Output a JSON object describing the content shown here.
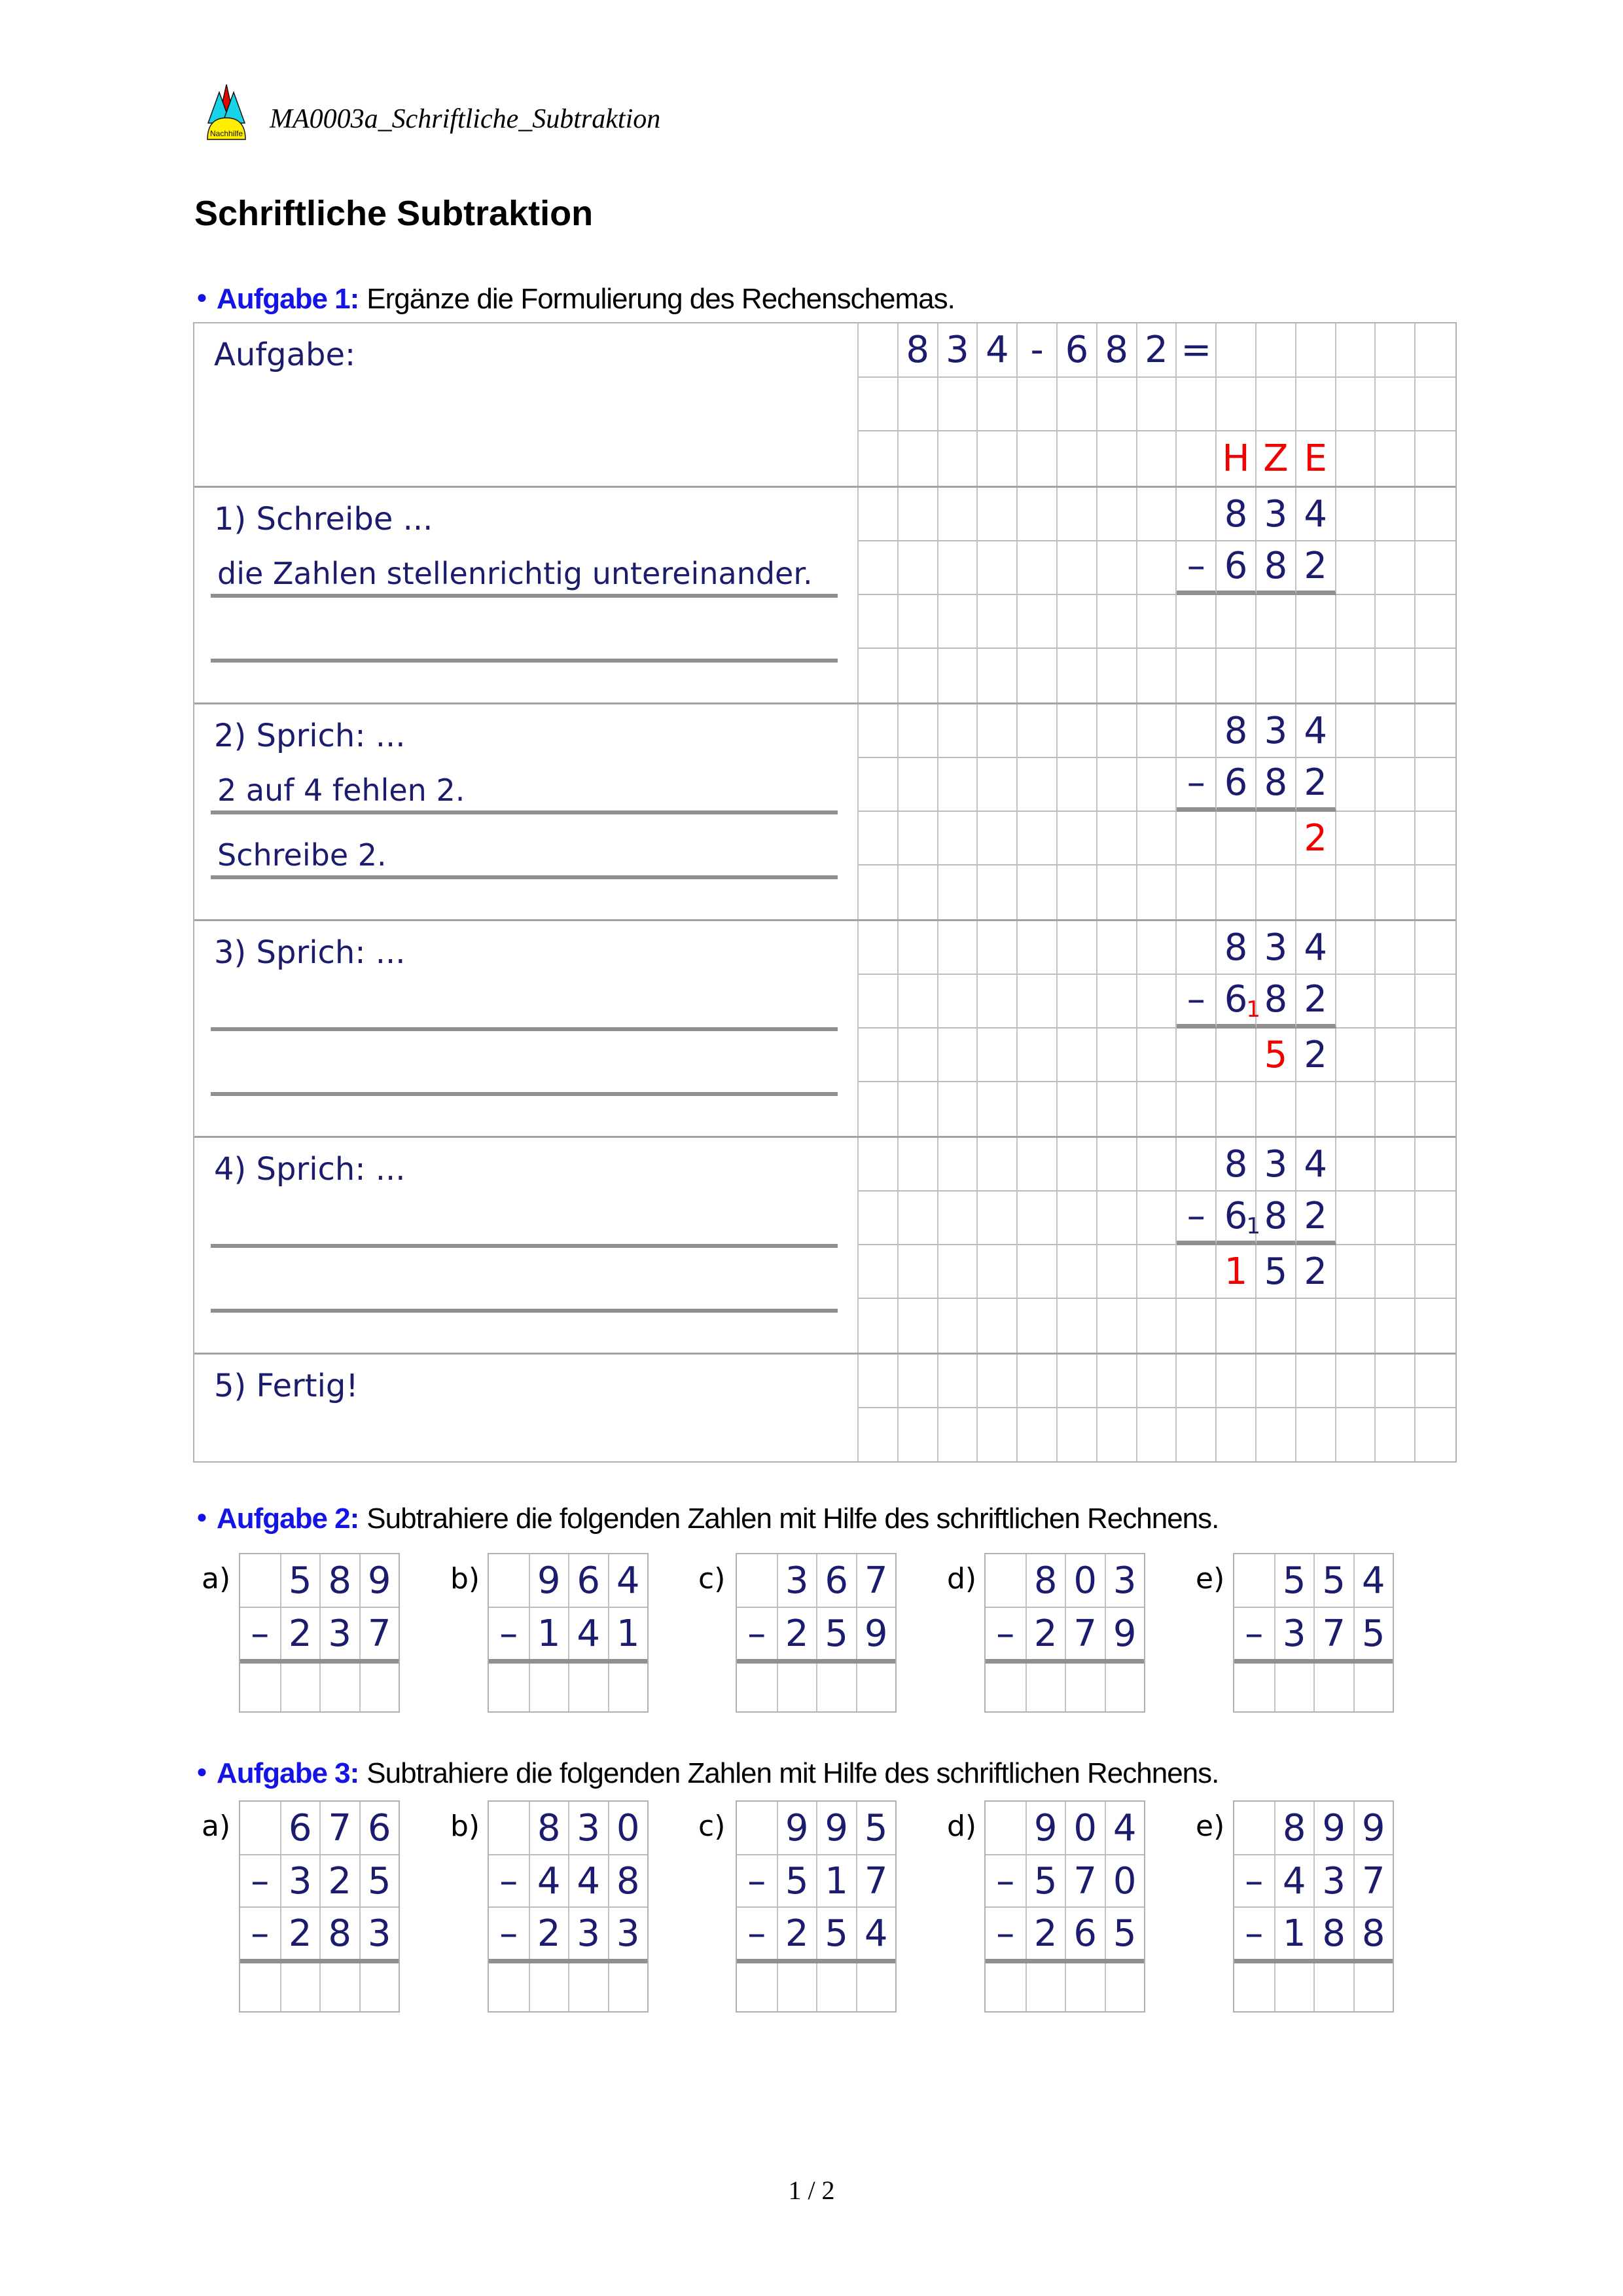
{
  "header": {
    "doc_name": "MA0003a_Schriftliche_Subtraktion",
    "logo_label": "Nachhilfe"
  },
  "title": "Schriftliche Subtraktion",
  "footer": "1 / 2",
  "colors": {
    "navy": "#1c1c6e",
    "red": "#f20000",
    "label_blue": "#1414e8"
  },
  "task1": {
    "bullet": "●",
    "label": "Aufgabe 1:",
    "instruction": "Ergänze die Formulierung des Rechenschemas.",
    "table": {
      "columns": 15,
      "sections": [
        {
          "id": "aufgabe",
          "title": "Aufgabe:",
          "rows": 3,
          "answers": [],
          "cells": [
            {
              "r": 0,
              "c": 1,
              "t": "8"
            },
            {
              "r": 0,
              "c": 2,
              "t": "3"
            },
            {
              "r": 0,
              "c": 3,
              "t": "4"
            },
            {
              "r": 0,
              "c": 4,
              "t": "-"
            },
            {
              "r": 0,
              "c": 5,
              "t": "6"
            },
            {
              "r": 0,
              "c": 6,
              "t": "8"
            },
            {
              "r": 0,
              "c": 7,
              "t": "2"
            },
            {
              "r": 0,
              "c": 8,
              "t": "="
            },
            {
              "r": 2,
              "c": 9,
              "t": "H",
              "color": "red"
            },
            {
              "r": 2,
              "c": 10,
              "t": "Z",
              "color": "red"
            },
            {
              "r": 2,
              "c": 11,
              "t": "E",
              "color": "red"
            }
          ],
          "rules": []
        },
        {
          "id": "step1",
          "title": "1) Schreibe ...",
          "rows": 4,
          "answers": [
            {
              "text": "die Zahlen stellenrichtig untereinander."
            },
            {
              "text": ""
            }
          ],
          "cells": [
            {
              "r": 0,
              "c": 9,
              "t": "8"
            },
            {
              "r": 0,
              "c": 10,
              "t": "3"
            },
            {
              "r": 0,
              "c": 11,
              "t": "4"
            },
            {
              "r": 1,
              "c": 8,
              "t": "–"
            },
            {
              "r": 1,
              "c": 9,
              "t": "6"
            },
            {
              "r": 1,
              "c": 10,
              "t": "8"
            },
            {
              "r": 1,
              "c": 11,
              "t": "2"
            }
          ],
          "rules": [
            {
              "r": 1,
              "c1": 8,
              "c2": 11
            }
          ]
        },
        {
          "id": "step2",
          "title": "2) Sprich: ...",
          "rows": 4,
          "answers": [
            {
              "text": "2 auf 4 fehlen 2."
            },
            {
              "text": "Schreibe 2."
            }
          ],
          "cells": [
            {
              "r": 0,
              "c": 9,
              "t": "8"
            },
            {
              "r": 0,
              "c": 10,
              "t": "3"
            },
            {
              "r": 0,
              "c": 11,
              "t": "4"
            },
            {
              "r": 1,
              "c": 8,
              "t": "–"
            },
            {
              "r": 1,
              "c": 9,
              "t": "6"
            },
            {
              "r": 1,
              "c": 10,
              "t": "8"
            },
            {
              "r": 1,
              "c": 11,
              "t": "2"
            },
            {
              "r": 2,
              "c": 11,
              "t": "2",
              "color": "red"
            }
          ],
          "rules": [
            {
              "r": 1,
              "c1": 8,
              "c2": 11
            }
          ]
        },
        {
          "id": "step3",
          "title": "3) Sprich: ...",
          "rows": 4,
          "answers": [
            {
              "text": ""
            },
            {
              "text": ""
            }
          ],
          "cells": [
            {
              "r": 0,
              "c": 9,
              "t": "8"
            },
            {
              "r": 0,
              "c": 10,
              "t": "3"
            },
            {
              "r": 0,
              "c": 11,
              "t": "4"
            },
            {
              "r": 1,
              "c": 8,
              "t": "–"
            },
            {
              "r": 1,
              "c": 9,
              "t": "6",
              "sub": "1",
              "sub_color": "red"
            },
            {
              "r": 1,
              "c": 10,
              "t": "8"
            },
            {
              "r": 1,
              "c": 11,
              "t": "2"
            },
            {
              "r": 2,
              "c": 10,
              "t": "5",
              "color": "red"
            },
            {
              "r": 2,
              "c": 11,
              "t": "2"
            }
          ],
          "rules": [
            {
              "r": 1,
              "c1": 8,
              "c2": 11
            }
          ]
        },
        {
          "id": "step4",
          "title": "4) Sprich: ...",
          "rows": 4,
          "answers": [
            {
              "text": ""
            },
            {
              "text": ""
            }
          ],
          "cells": [
            {
              "r": 0,
              "c": 9,
              "t": "8"
            },
            {
              "r": 0,
              "c": 10,
              "t": "3"
            },
            {
              "r": 0,
              "c": 11,
              "t": "4"
            },
            {
              "r": 1,
              "c": 8,
              "t": "–"
            },
            {
              "r": 1,
              "c": 9,
              "t": "6",
              "sub": "1",
              "sub_color": "navy"
            },
            {
              "r": 1,
              "c": 10,
              "t": "8"
            },
            {
              "r": 1,
              "c": 11,
              "t": "2"
            },
            {
              "r": 2,
              "c": 9,
              "t": "1",
              "color": "red"
            },
            {
              "r": 2,
              "c": 10,
              "t": "5"
            },
            {
              "r": 2,
              "c": 11,
              "t": "2"
            }
          ],
          "rules": [
            {
              "r": 1,
              "c1": 8,
              "c2": 11
            }
          ]
        },
        {
          "id": "step5",
          "title": "5) Fertig!",
          "rows": 2,
          "answers": [],
          "cells": [],
          "rules": []
        }
      ]
    }
  },
  "task2": {
    "bullet": "●",
    "label": "Aufgabe 2:",
    "instruction": "Subtrahiere die folgenden Zahlen mit Hilfe des schriftlichen Rechnens.",
    "problems": [
      {
        "label": "a)",
        "minuend": "589",
        "subtrahends": [
          "237"
        ]
      },
      {
        "label": "b)",
        "minuend": "964",
        "subtrahends": [
          "141"
        ]
      },
      {
        "label": "c)",
        "minuend": "367",
        "subtrahends": [
          "259"
        ]
      },
      {
        "label": "d)",
        "minuend": "803",
        "subtrahends": [
          "279"
        ]
      },
      {
        "label": "e)",
        "minuend": "554",
        "subtrahends": [
          "375"
        ]
      }
    ]
  },
  "task3": {
    "bullet": "●",
    "label": "Aufgabe 3:",
    "instruction": "Subtrahiere die folgenden Zahlen mit Hilfe des schriftlichen Rechnens.",
    "problems": [
      {
        "label": "a)",
        "minuend": "676",
        "subtrahends": [
          "325",
          "283"
        ]
      },
      {
        "label": "b)",
        "minuend": "830",
        "subtrahends": [
          "448",
          "233"
        ]
      },
      {
        "label": "c)",
        "minuend": "995",
        "subtrahends": [
          "517",
          "254"
        ]
      },
      {
        "label": "d)",
        "minuend": "904",
        "subtrahends": [
          "570",
          "265"
        ]
      },
      {
        "label": "e)",
        "minuend": "899",
        "subtrahends": [
          "437",
          "188"
        ]
      }
    ]
  }
}
